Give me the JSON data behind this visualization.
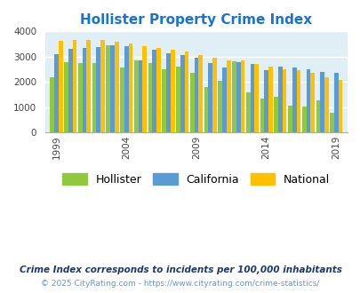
{
  "title": "Hollister Property Crime Index",
  "title_color": "#1874CD",
  "years": [
    1999,
    2000,
    2001,
    2002,
    2003,
    2004,
    2005,
    2006,
    2007,
    2008,
    2009,
    2010,
    2011,
    2012,
    2013,
    2014,
    2015,
    2016,
    2017,
    2018,
    2019,
    2020
  ],
  "hollister": [
    2200,
    2780,
    2760,
    2760,
    3450,
    2560,
    2860,
    2760,
    2500,
    2600,
    2350,
    1820,
    2060,
    2820,
    1580,
    1350,
    1430,
    1060,
    1050,
    1270,
    780,
    null
  ],
  "california": [
    3100,
    3310,
    3350,
    3390,
    3440,
    3430,
    2870,
    3290,
    3150,
    3070,
    2960,
    2760,
    2590,
    2780,
    2700,
    2470,
    2620,
    2570,
    2500,
    2395,
    2370,
    null
  ],
  "national": [
    3610,
    3670,
    3660,
    3650,
    3590,
    3520,
    3420,
    3360,
    3290,
    3220,
    3050,
    2960,
    2870,
    2860,
    2730,
    2620,
    2510,
    2460,
    2360,
    2200,
    2100,
    null
  ],
  "hollister_color": "#90C840",
  "california_color": "#5B9BD5",
  "national_color": "#FFC000",
  "bg_color": "#E0EFF5",
  "fig_bg": "#FFFFFF",
  "ylim": [
    0,
    4000
  ],
  "yticks": [
    0,
    1000,
    2000,
    3000,
    4000
  ],
  "xtick_positions": [
    1999,
    2004,
    2009,
    2014,
    2019
  ],
  "footnote1": "Crime Index corresponds to incidents per 100,000 inhabitants",
  "footnote2": "© 2025 CityRating.com - https://www.cityrating.com/crime-statistics/",
  "footnote1_color": "#1C3A6B",
  "footnote2_color": "#5B9BD5",
  "legend_labels": [
    "Hollister",
    "California",
    "National"
  ]
}
